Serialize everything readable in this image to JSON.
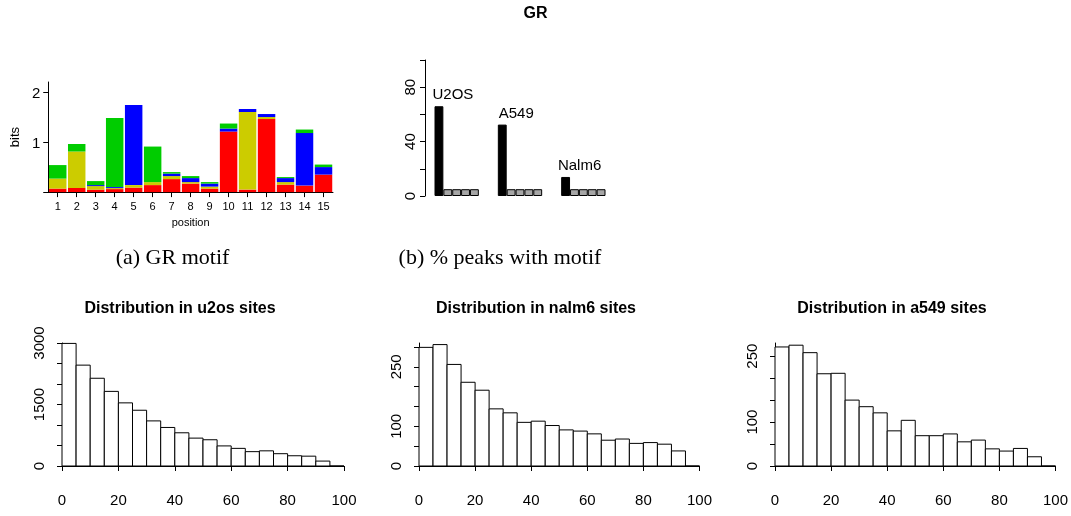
{
  "chart_data": [
    {
      "type": "bar",
      "stacked": true,
      "ylabel": "bits",
      "xlabel": "position",
      "annotations": [
        "(a) GR motif"
      ],
      "categories": [
        "1",
        "2",
        "3",
        "4",
        "5",
        "6",
        "7",
        "8",
        "9",
        "10",
        "11",
        "12",
        "13",
        "14",
        "15"
      ],
      "series": [
        {
          "color": "#ff0000",
          "values": [
            0.07,
            0.08,
            0.05,
            0.06,
            0.09,
            0.14,
            0.26,
            0.17,
            0.07,
            1.21,
            0.05,
            1.46,
            0.15,
            0.13,
            0.35
          ]
        },
        {
          "color": "#cccc00",
          "values": [
            0.2,
            0.73,
            0.07,
            0.02,
            0.05,
            0.06,
            0.06,
            0.03,
            0.04,
            0,
            1.55,
            0.04,
            0.05,
            0,
            0
          ]
        },
        {
          "color": "#0000ff",
          "values": [
            0,
            0,
            0.02,
            0.02,
            1.6,
            0,
            0.05,
            0.08,
            0.06,
            0.06,
            0.06,
            0.06,
            0.08,
            1.05,
            0.15
          ]
        },
        {
          "color": "#00cc00",
          "values": [
            0.27,
            0.15,
            0.08,
            1.38,
            0,
            0.71,
            0.03,
            0.04,
            0.03,
            0.1,
            0,
            null,
            0.02,
            0.07,
            0.05
          ]
        }
      ],
      "ylim": [
        0,
        2.2
      ],
      "yticks": [
        {
          "value": 0,
          "label": null
        },
        1,
        2
      ]
    },
    {
      "type": "bar",
      "title": "GR",
      "annotations": [
        "(b) % peaks with motif"
      ],
      "tick_labels": "y",
      "data_labels": false,
      "categories": [
        "U2OS",
        "A549",
        "Nalm6"
      ],
      "series": [
        {
          "color": "#000000",
          "values": [
            66,
            52.5,
            14
          ]
        },
        {
          "color": "#a6a6a6",
          "values": [
            5,
            5,
            5
          ]
        },
        {
          "color": "#a6a6a6",
          "values": [
            5,
            5,
            5
          ]
        },
        {
          "color": "#a6a6a6",
          "values": [
            5,
            5,
            5
          ]
        },
        {
          "color": "#a6a6a6",
          "values": [
            5,
            5,
            5
          ]
        }
      ],
      "ylim": [
        0,
        100
      ],
      "yticks": [
        0,
        {
          "value": 20,
          "label": null
        },
        40,
        {
          "value": 60,
          "label": null
        },
        80,
        {
          "value": 100,
          "label": null
        }
      ]
    },
    {
      "type": "histogram",
      "title": "Distribution in u2os sites",
      "color": "#ffffff",
      "bins": [
        0,
        5,
        10,
        15,
        20,
        25,
        30,
        35,
        40,
        45,
        50,
        55,
        60,
        65,
        70,
        75,
        80,
        85,
        90,
        95,
        100
      ],
      "values": [
        2990,
        2460,
        2140,
        1820,
        1540,
        1360,
        1100,
        940,
        810,
        680,
        640,
        490,
        430,
        350,
        370,
        300,
        250,
        240,
        120,
        0
      ],
      "xlim": [
        0,
        100
      ],
      "xticks": [
        0,
        20,
        40,
        60,
        80,
        100
      ],
      "ylim": [
        0,
        3000
      ],
      "yticks": [
        0,
        {
          "value": 500,
          "label": null
        },
        {
          "value": 1000,
          "label": null
        },
        1500,
        {
          "value": 2000,
          "label": null
        },
        {
          "value": 2500,
          "label": null
        },
        3000
      ]
    },
    {
      "type": "histogram",
      "title": "Distribution in nalm6 sites",
      "color": "#ffffff",
      "bins": [
        0,
        5,
        10,
        15,
        20,
        25,
        30,
        35,
        40,
        45,
        50,
        55,
        60,
        65,
        70,
        75,
        80,
        85,
        90,
        95,
        100
      ],
      "values": [
        299,
        306,
        256,
        211,
        191,
        144,
        134,
        110,
        113,
        102,
        91,
        88,
        81,
        65,
        68,
        57,
        59,
        55,
        38,
        0
      ],
      "xlim": [
        0,
        100
      ],
      "xticks": [
        0,
        20,
        40,
        60,
        80,
        100
      ],
      "ylim": [
        0,
        310
      ],
      "yticks": [
        0,
        {
          "value": 50,
          "label": null
        },
        100,
        {
          "value": 150,
          "label": null
        },
        {
          "value": 200,
          "label": null
        },
        250,
        {
          "value": 300,
          "label": null
        }
      ]
    },
    {
      "type": "histogram",
      "title": "Distribution in a549 sites",
      "color": "#ffffff",
      "bins": [
        0,
        5,
        10,
        15,
        20,
        25,
        30,
        35,
        40,
        45,
        50,
        55,
        60,
        65,
        70,
        75,
        80,
        85,
        90,
        95,
        100
      ],
      "values": [
        271,
        275,
        258,
        210,
        211,
        150,
        135,
        121,
        80,
        104,
        69,
        69,
        73,
        55,
        59,
        39,
        34,
        40,
        21,
        0
      ],
      "xlim": [
        0,
        100
      ],
      "xticks": [
        0,
        20,
        40,
        60,
        80,
        100
      ],
      "ylim": [
        0,
        280
      ],
      "yticks": [
        0,
        {
          "value": 50,
          "label": null
        },
        100,
        {
          "value": 150,
          "label": null
        },
        {
          "value": 200,
          "label": null
        },
        250
      ]
    }
  ]
}
